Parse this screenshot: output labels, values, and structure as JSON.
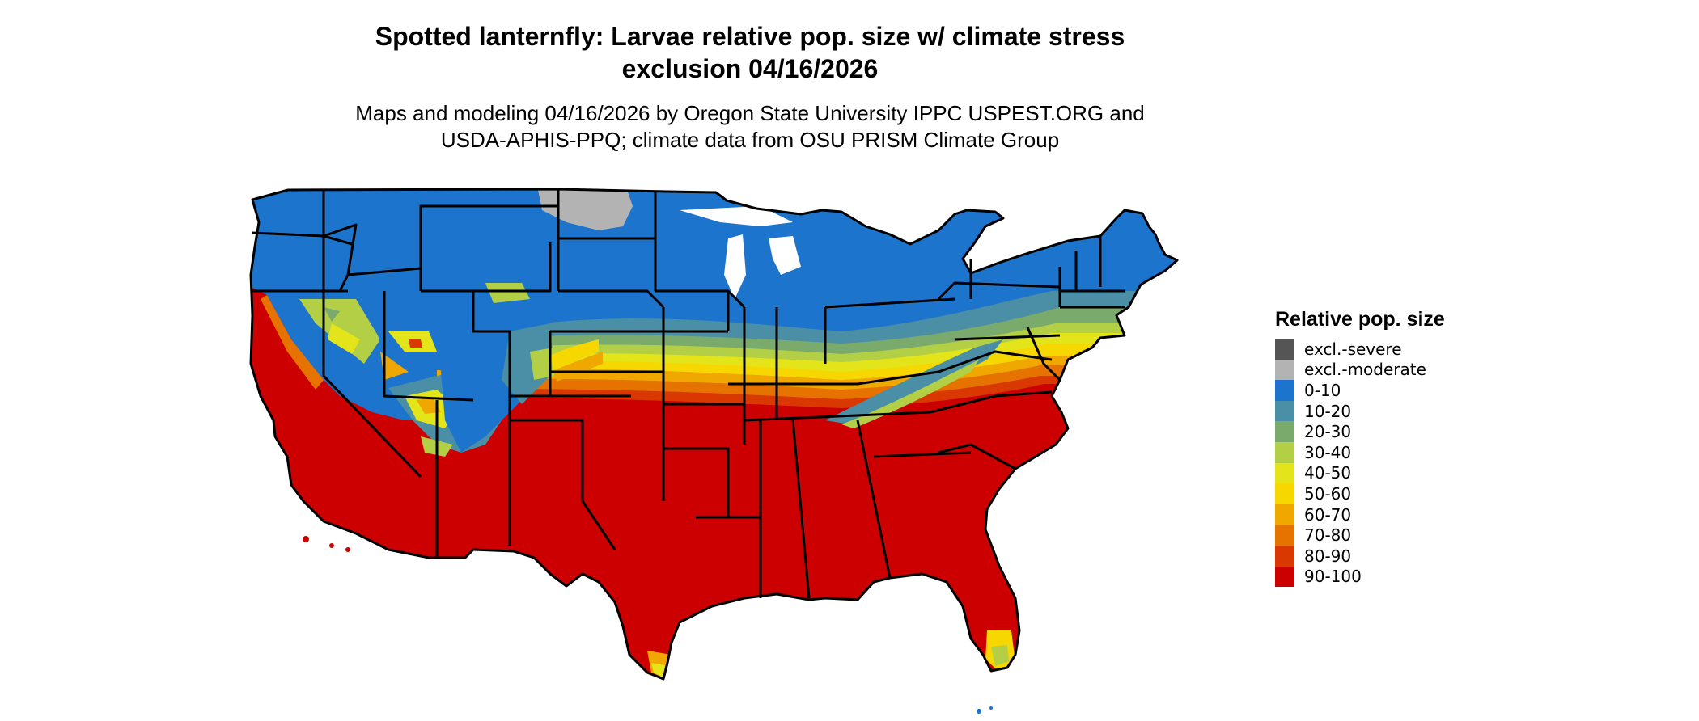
{
  "title_line1": "Spotted lanternfly: Larvae relative pop. size w/ climate stress",
  "title_line2": "exclusion 04/16/2026",
  "subtitle_line1": "Maps and modeling 04/16/2026 by Oregon State University IPPC USPEST.ORG and",
  "subtitle_line2": "USDA-APHIS-PPQ; climate data from OSU PRISM Climate Group",
  "legend": {
    "title": "Relative pop. size",
    "items": [
      {
        "label": "excl.-severe",
        "color": "#555555"
      },
      {
        "label": "excl.-moderate",
        "color": "#b3b3b3"
      },
      {
        "label": "0-10",
        "color": "#1c74cc"
      },
      {
        "label": "10-20",
        "color": "#4a8fa5"
      },
      {
        "label": "20-30",
        "color": "#7aab6d"
      },
      {
        "label": "30-40",
        "color": "#b2cf45"
      },
      {
        "label": "40-50",
        "color": "#e3e51a"
      },
      {
        "label": "50-60",
        "color": "#f7d700"
      },
      {
        "label": "60-70",
        "color": "#f0a800"
      },
      {
        "label": "70-80",
        "color": "#e67200"
      },
      {
        "label": "80-90",
        "color": "#d93800"
      },
      {
        "label": "90-100",
        "color": "#cc0000"
      }
    ]
  }
}
